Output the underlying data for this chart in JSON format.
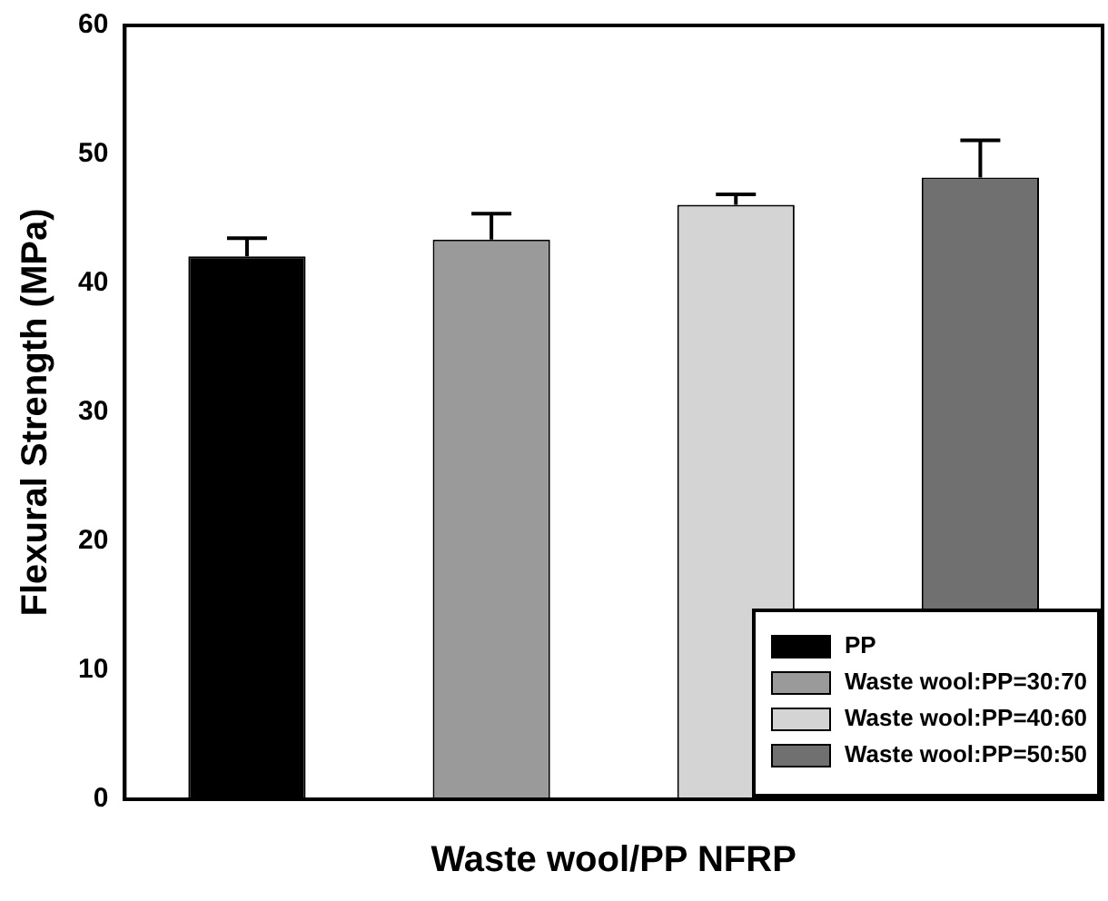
{
  "chart_data": {
    "type": "bar",
    "xlabel": "Waste wool/PP NFRP",
    "ylabel": "Flexural Strength (MPa)",
    "categories": [
      null,
      null,
      null,
      null
    ],
    "series": [
      {
        "name": "PP",
        "color": "#000000",
        "values": [
          42.1,
          null,
          null,
          null
        ],
        "errors": [
          [
            42.1,
            43.5
          ],
          null,
          null,
          null
        ]
      },
      {
        "name": "Waste wool:PP=30:70",
        "color": "#9a9a9a",
        "values": [
          null,
          43.4,
          null,
          null
        ],
        "errors": [
          null,
          [
            43.4,
            45.4
          ],
          null,
          null
        ]
      },
      {
        "name": "Waste wool:PP=40:60",
        "color": "#d4d4d4",
        "values": [
          null,
          null,
          46.1,
          null
        ],
        "errors": [
          null,
          null,
          [
            46.1,
            46.9
          ],
          null
        ]
      },
      {
        "name": "Waste wool:PP=50:50",
        "color": "#707070",
        "values": [
          null,
          null,
          null,
          48.2
        ],
        "errors": [
          null,
          null,
          null,
          [
            48.2,
            51.1
          ]
        ]
      }
    ],
    "ylim": [
      0,
      60
    ],
    "yticks": [
      0,
      10,
      20,
      30,
      40,
      50,
      60
    ],
    "grid": false,
    "legend": "bottom right"
  }
}
